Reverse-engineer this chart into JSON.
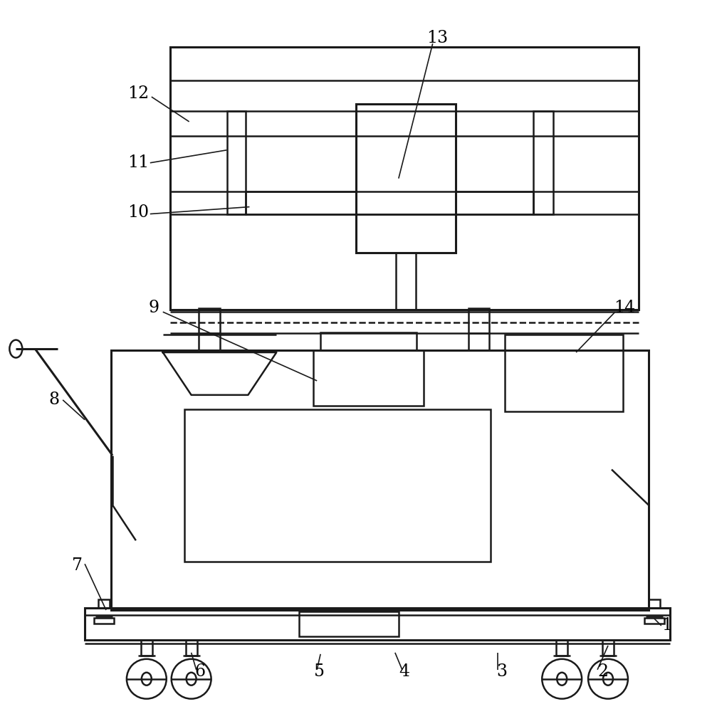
{
  "bg_color": "#ffffff",
  "line_color": "#1a1a1a",
  "lw": 1.8,
  "tlw": 2.2,
  "fig_width": 10.0,
  "fig_height": 9.96
}
